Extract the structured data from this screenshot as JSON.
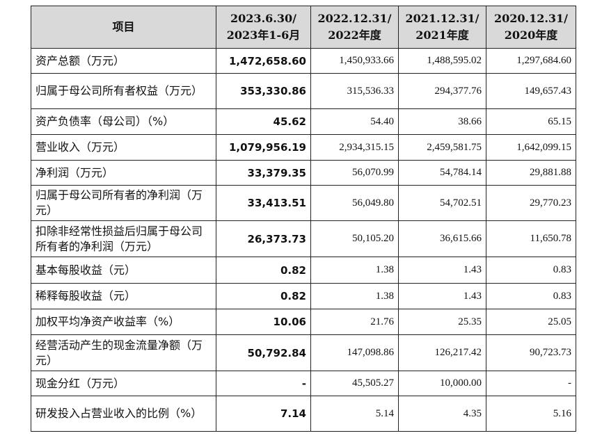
{
  "table": {
    "headers": [
      {
        "lines": [
          "项目"
        ]
      },
      {
        "lines": [
          "2023.6.30/",
          "2023年1-6月"
        ]
      },
      {
        "lines": [
          "2022.12.31/",
          "2022年度"
        ]
      },
      {
        "lines": [
          "2021.12.31/",
          "2021年度"
        ]
      },
      {
        "lines": [
          "2020.12.31/",
          "2020年度"
        ]
      }
    ],
    "rows": [
      {
        "label": "资产总额（万元）",
        "values": [
          "1,472,658.60",
          "1,450,933.66",
          "1,488,595.02",
          "1,297,684.60"
        ]
      },
      {
        "label": "归属于母公司所有者权益（万元）",
        "values": [
          "353,330.86",
          "315,536.33",
          "294,377.76",
          "149,657.43"
        ]
      },
      {
        "label": "资产负债率（母公司）（%）",
        "values": [
          "45.62",
          "54.40",
          "38.66",
          "65.15"
        ]
      },
      {
        "label": "营业收入（万元）",
        "values": [
          "1,079,956.19",
          "2,934,315.15",
          "2,459,581.75",
          "1,642,099.15"
        ]
      },
      {
        "label": "净利润（万元）",
        "values": [
          "33,379.35",
          "56,070.99",
          "54,784.14",
          "29,881.88"
        ]
      },
      {
        "label": "归属于母公司所有者的净利润（万元）",
        "values": [
          "33,413.51",
          "56,049.80",
          "54,702.51",
          "29,770.23"
        ]
      },
      {
        "label": "扣除非经常性损益后归属于母公司所有者的净利润（万元）",
        "values": [
          "26,373.73",
          "50,105.20",
          "36,615.66",
          "11,650.78"
        ]
      },
      {
        "label": "基本每股收益（元）",
        "values": [
          "0.82",
          "1.38",
          "1.43",
          "0.83"
        ]
      },
      {
        "label": "稀释每股收益（元）",
        "values": [
          "0.82",
          "1.38",
          "1.43",
          "0.83"
        ]
      },
      {
        "label": "加权平均净资产收益率（%）",
        "values": [
          "10.06",
          "21.76",
          "25.35",
          "25.05"
        ]
      },
      {
        "label": "经营活动产生的现金流量净额（万元）",
        "values": [
          "50,792.84",
          "147,098.86",
          "126,217.42",
          "90,723.73"
        ]
      },
      {
        "label": "现金分红（万元）",
        "values": [
          "-",
          "45,505.27",
          "10,000.00",
          "-"
        ]
      },
      {
        "label": "研发投入占营业收入的比例（%）",
        "values": [
          "7.14",
          "5.14",
          "4.35",
          "5.16"
        ]
      }
    ]
  }
}
